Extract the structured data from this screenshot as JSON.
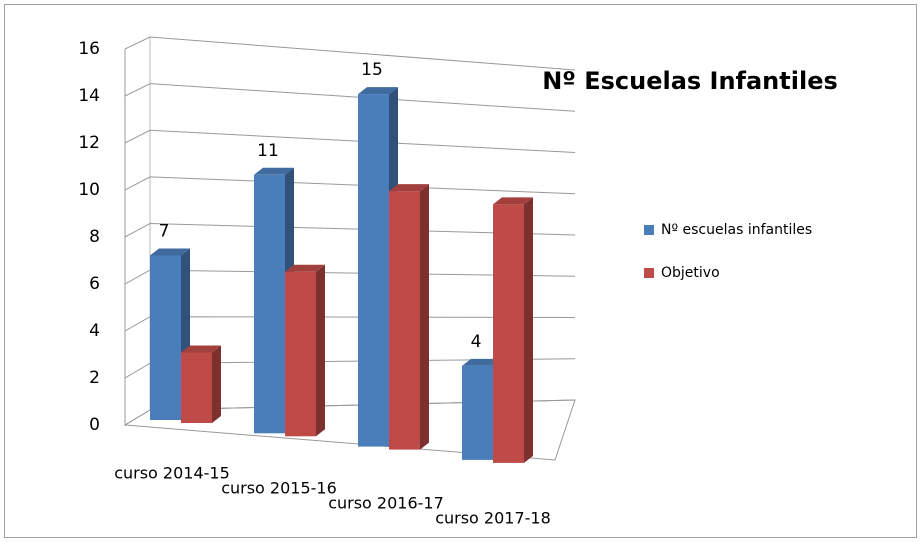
{
  "chart_data": {
    "type": "bar3d",
    "title": "Nº Escuelas Infantiles",
    "categories": [
      "curso 2014-15",
      "curso 2015-16",
      "curso 2016-17",
      "curso 2017-18"
    ],
    "series": [
      {
        "name": "Nº escuelas infantiles",
        "color": "#4a7ebb",
        "values": [
          7,
          11,
          15,
          4
        ],
        "value_labels": [
          "7",
          "11",
          "15",
          "4"
        ]
      },
      {
        "name": "Objetivo",
        "color": "#be4b48",
        "values": [
          3,
          7,
          11,
          11
        ]
      }
    ],
    "ylim": [
      0,
      16
    ],
    "yticks": [
      0,
      2,
      4,
      6,
      8,
      10,
      12,
      14,
      16
    ],
    "grid": true,
    "legend": "right"
  }
}
